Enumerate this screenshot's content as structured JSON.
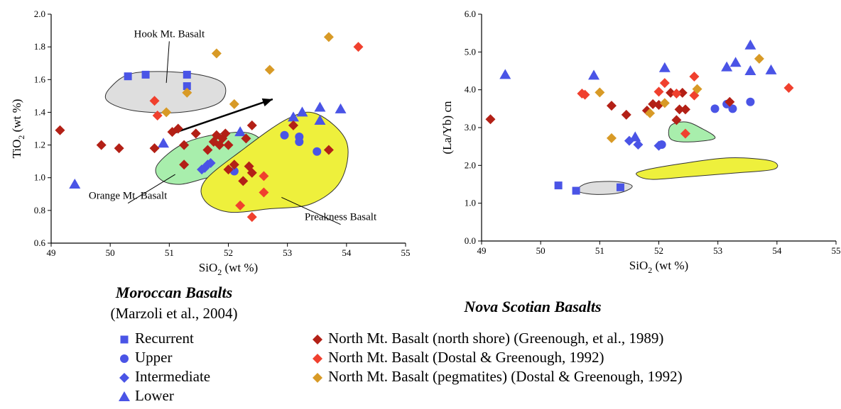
{
  "colors": {
    "recurrent": "#4a54e6",
    "upper": "#4a54e6",
    "intermediate": "#4a54e6",
    "lower": "#4a54e6",
    "north_shore": "#b32016",
    "dostal": "#f0402e",
    "pegmatites": "#d89a26",
    "hook_fill": "#dedede",
    "orange_fill": "#a8eeac",
    "preakness_fill": "#eef03c",
    "region_stroke": "#333333"
  },
  "chart_data": [
    {
      "type": "scatter",
      "panel": "left",
      "xlabel": "SiO",
      "xlabel_sub": "2",
      "xlabel_suffix": " (wt %)",
      "ylabel": "TiO",
      "ylabel_sub": "2",
      "ylabel_suffix": " (wt %)",
      "xlim": [
        49,
        55
      ],
      "ylim": [
        0.6,
        2.0
      ],
      "xticks": [
        49,
        50,
        51,
        52,
        53,
        54,
        55
      ],
      "yticks": [
        0.6,
        0.8,
        1.0,
        1.2,
        1.4,
        1.6,
        1.8,
        2.0
      ],
      "ytick_labels": [
        "0.6",
        "0.8",
        "1.0",
        "1.2",
        "1.4",
        "1.6",
        "1.8",
        "2.0"
      ],
      "regions": [
        {
          "label": "Hook Mt. Basalt",
          "fill": "hook_fill",
          "outline": [
            [
              50.0,
              1.55
            ],
            [
              50.4,
              1.64
            ],
            [
              51.3,
              1.64
            ],
            [
              51.9,
              1.58
            ],
            [
              51.85,
              1.46
            ],
            [
              51.2,
              1.4
            ],
            [
              50.4,
              1.41
            ],
            [
              49.95,
              1.47
            ]
          ]
        },
        {
          "label": "Orange Mt. Basalt",
          "fill": "orange_fill",
          "outline": [
            [
              50.8,
              1.08
            ],
            [
              51.25,
              1.21
            ],
            [
              51.9,
              1.27
            ],
            [
              52.45,
              1.26
            ],
            [
              52.8,
              1.1
            ],
            [
              52.5,
              1.01
            ],
            [
              51.8,
              1.01
            ],
            [
              51.2,
              0.96
            ],
            [
              50.85,
              0.99
            ]
          ]
        },
        {
          "label": "Preakness Basalt",
          "fill": "preakness_fill",
          "outline": [
            [
              51.6,
              0.98
            ],
            [
              52.2,
              1.16
            ],
            [
              53.0,
              1.36
            ],
            [
              53.5,
              1.39
            ],
            [
              54.0,
              1.22
            ],
            [
              53.9,
              0.98
            ],
            [
              53.4,
              0.84
            ],
            [
              52.7,
              0.81
            ],
            [
              52.0,
              0.79
            ],
            [
              51.6,
              0.86
            ]
          ]
        }
      ],
      "region_labels": [
        {
          "text": "Hook Mt. Basalt",
          "x": 51.0,
          "y": 1.86,
          "line_to": [
            50.95,
            1.58
          ]
        },
        {
          "text": "Orange Mt. Basalt",
          "x": 50.3,
          "y": 0.87,
          "line_to": [
            51.1,
            1.02
          ]
        },
        {
          "text": "Preakness Basalt",
          "x": 53.9,
          "y": 0.74,
          "line_to": [
            52.9,
            0.88
          ]
        }
      ],
      "arrow": {
        "from": [
          51.05,
          1.27
        ],
        "to": [
          52.75,
          1.48
        ]
      },
      "series": [
        {
          "name": "Recurrent",
          "marker": "square",
          "color": "recurrent",
          "points": [
            [
              50.3,
              1.62
            ],
            [
              50.6,
              1.63
            ],
            [
              51.3,
              1.63
            ],
            [
              51.3,
              1.56
            ]
          ]
        },
        {
          "name": "Upper",
          "marker": "circle",
          "color": "upper",
          "points": [
            [
              52.1,
              1.04
            ],
            [
              52.95,
              1.26
            ],
            [
              53.2,
              1.25
            ],
            [
              53.2,
              1.22
            ],
            [
              53.5,
              1.16
            ]
          ]
        },
        {
          "name": "Intermediate",
          "marker": "diamond",
          "color": "intermediate",
          "points": [
            [
              51.55,
              1.05
            ],
            [
              51.6,
              1.06
            ],
            [
              51.65,
              1.08
            ],
            [
              51.7,
              1.09
            ]
          ]
        },
        {
          "name": "Lower",
          "marker": "triangle",
          "color": "lower",
          "points": [
            [
              49.4,
              0.96
            ],
            [
              50.9,
              1.21
            ],
            [
              52.2,
              1.28
            ],
            [
              53.1,
              1.37
            ],
            [
              53.25,
              1.4
            ],
            [
              53.55,
              1.43
            ],
            [
              53.55,
              1.35
            ],
            [
              53.9,
              1.42
            ]
          ]
        },
        {
          "name": "North Mt. Basalt (north shore) (Greenough, et al., 1989)",
          "marker": "diamond",
          "color": "north_shore",
          "points": [
            [
              49.15,
              1.29
            ],
            [
              49.85,
              1.2
            ],
            [
              50.15,
              1.18
            ],
            [
              50.75,
              1.18
            ],
            [
              51.05,
              1.28
            ],
            [
              51.15,
              1.3
            ],
            [
              51.25,
              1.2
            ],
            [
              51.25,
              1.08
            ],
            [
              51.45,
              1.27
            ],
            [
              51.65,
              1.17
            ],
            [
              51.75,
              1.22
            ],
            [
              51.8,
              1.26
            ],
            [
              51.85,
              1.2
            ],
            [
              51.9,
              1.24
            ],
            [
              51.95,
              1.27
            ],
            [
              52.0,
              1.2
            ],
            [
              52.0,
              1.05
            ],
            [
              52.1,
              1.08
            ],
            [
              52.25,
              0.98
            ],
            [
              52.3,
              1.24
            ],
            [
              52.35,
              1.07
            ],
            [
              52.4,
              1.32
            ],
            [
              52.4,
              1.03
            ],
            [
              53.1,
              1.32
            ],
            [
              53.7,
              1.17
            ]
          ]
        },
        {
          "name": "North Mt. Basalt (Dostal & Greenough, 1992)",
          "marker": "diamond",
          "color": "dostal",
          "points": [
            [
              50.75,
              1.47
            ],
            [
              50.8,
              1.38
            ],
            [
              52.2,
              0.83
            ],
            [
              52.4,
              0.76
            ],
            [
              52.6,
              1.01
            ],
            [
              52.6,
              0.91
            ],
            [
              54.2,
              1.8
            ]
          ]
        },
        {
          "name": "North Mt. Basalt (pegmatites) (Dostal & Greenough, 1992)",
          "marker": "diamond",
          "color": "pegmatites",
          "points": [
            [
              50.95,
              1.4
            ],
            [
              51.3,
              1.52
            ],
            [
              51.8,
              1.76
            ],
            [
              52.1,
              1.45
            ],
            [
              52.7,
              1.66
            ],
            [
              53.7,
              1.86
            ]
          ]
        }
      ]
    },
    {
      "type": "scatter",
      "panel": "right",
      "xlabel": "SiO",
      "xlabel_sub": "2",
      "xlabel_suffix": " (wt %)",
      "ylabel": "(La/Yb) cn",
      "xlim": [
        49,
        55
      ],
      "ylim": [
        0.0,
        6.0
      ],
      "xticks": [
        49,
        50,
        51,
        52,
        53,
        54,
        55
      ],
      "yticks": [
        0,
        1,
        2,
        3,
        4,
        5,
        6
      ],
      "ytick_labels": [
        "0.0",
        "1.0",
        "2.0",
        "3.0",
        "4.0",
        "5.0",
        "6.0"
      ],
      "regions": [
        {
          "label": "",
          "fill": "hook_fill",
          "outline": [
            [
              50.65,
              1.42
            ],
            [
              50.85,
              1.55
            ],
            [
              51.3,
              1.57
            ],
            [
              51.55,
              1.45
            ],
            [
              51.35,
              1.28
            ],
            [
              50.95,
              1.23
            ],
            [
              50.65,
              1.3
            ]
          ]
        },
        {
          "label": "",
          "fill": "orange_fill",
          "outline": [
            [
              52.2,
              3.05
            ],
            [
              52.45,
              3.15
            ],
            [
              52.7,
              3.0
            ],
            [
              52.95,
              2.72
            ],
            [
              52.5,
              2.62
            ],
            [
              52.2,
              2.7
            ]
          ]
        },
        {
          "label": "",
          "fill": "preakness_fill",
          "outline": [
            [
              51.7,
              1.85
            ],
            [
              52.4,
              2.05
            ],
            [
              53.2,
              2.2
            ],
            [
              53.9,
              2.12
            ],
            [
              53.95,
              1.9
            ],
            [
              53.3,
              1.8
            ],
            [
              52.5,
              1.7
            ],
            [
              51.9,
              1.63
            ],
            [
              51.65,
              1.72
            ]
          ]
        }
      ],
      "series": [
        {
          "name": "Recurrent",
          "marker": "square",
          "color": "recurrent",
          "points": [
            [
              50.3,
              1.47
            ],
            [
              50.6,
              1.33
            ],
            [
              51.35,
              1.42
            ]
          ]
        },
        {
          "name": "Upper",
          "marker": "circle",
          "color": "upper",
          "points": [
            [
              52.05,
              2.55
            ],
            [
              52.95,
              3.5
            ],
            [
              53.15,
              3.62
            ],
            [
              53.25,
              3.5
            ],
            [
              53.55,
              3.68
            ]
          ]
        },
        {
          "name": "Intermediate",
          "marker": "diamond",
          "color": "intermediate",
          "points": [
            [
              51.5,
              2.65
            ],
            [
              51.65,
              2.55
            ],
            [
              52.0,
              2.52
            ]
          ]
        },
        {
          "name": "Lower",
          "marker": "triangle",
          "color": "lower",
          "points": [
            [
              49.4,
              4.4
            ],
            [
              50.9,
              4.38
            ],
            [
              51.6,
              2.75
            ],
            [
              52.1,
              4.58
            ],
            [
              53.15,
              4.6
            ],
            [
              53.3,
              4.72
            ],
            [
              53.55,
              5.18
            ],
            [
              53.55,
              4.5
            ],
            [
              53.9,
              4.52
            ]
          ]
        },
        {
          "name": "North Mt. Basalt (north shore) (Greenough, et al., 1989)",
          "marker": "diamond",
          "color": "north_shore",
          "points": [
            [
              49.15,
              3.22
            ],
            [
              51.2,
              3.58
            ],
            [
              51.45,
              3.34
            ],
            [
              51.8,
              3.45
            ],
            [
              51.9,
              3.62
            ],
            [
              52.0,
              3.6
            ],
            [
              52.2,
              3.92
            ],
            [
              52.3,
              3.2
            ],
            [
              52.35,
              3.48
            ],
            [
              52.4,
              3.92
            ],
            [
              52.45,
              3.48
            ],
            [
              53.2,
              3.68
            ]
          ]
        },
        {
          "name": "North Mt. Basalt (Dostal & Greenough, 1992)",
          "marker": "diamond",
          "color": "dostal",
          "points": [
            [
              50.7,
              3.9
            ],
            [
              50.75,
              3.87
            ],
            [
              52.0,
              3.95
            ],
            [
              52.1,
              4.18
            ],
            [
              52.3,
              3.9
            ],
            [
              52.45,
              2.84
            ],
            [
              52.6,
              4.35
            ],
            [
              52.6,
              3.85
            ],
            [
              54.2,
              4.05
            ]
          ]
        },
        {
          "name": "North Mt. Basalt (pegmatites) (Dostal & Greenough, 1992)",
          "marker": "diamond",
          "color": "pegmatites",
          "points": [
            [
              51.0,
              3.93
            ],
            [
              51.2,
              2.72
            ],
            [
              51.85,
              3.38
            ],
            [
              52.1,
              3.65
            ],
            [
              52.65,
              4.02
            ],
            [
              53.7,
              4.82
            ]
          ]
        }
      ]
    }
  ],
  "captions": {
    "moroccan_title": "Moroccan Basalts",
    "moroccan_sub": "(Marzoli et al., 2004)",
    "nova_title": "Nova Scotian Basalts"
  },
  "legend_moroccan": [
    {
      "label": "Recurrent",
      "marker": "square",
      "color": "recurrent"
    },
    {
      "label": "Upper",
      "marker": "circle",
      "color": "upper"
    },
    {
      "label": "Intermediate",
      "marker": "diamond",
      "color": "intermediate"
    },
    {
      "label": "Lower",
      "marker": "triangle",
      "color": "lower"
    }
  ],
  "legend_nova": [
    {
      "label": "North Mt. Basalt (north shore) (Greenough, et al., 1989)",
      "marker": "diamond",
      "color": "north_shore"
    },
    {
      "label": "North Mt. Basalt (Dostal & Greenough, 1992)",
      "marker": "diamond",
      "color": "dostal"
    },
    {
      "label": "North Mt. Basalt (pegmatites) (Dostal & Greenough, 1992)",
      "marker": "diamond",
      "color": "pegmatites"
    }
  ]
}
